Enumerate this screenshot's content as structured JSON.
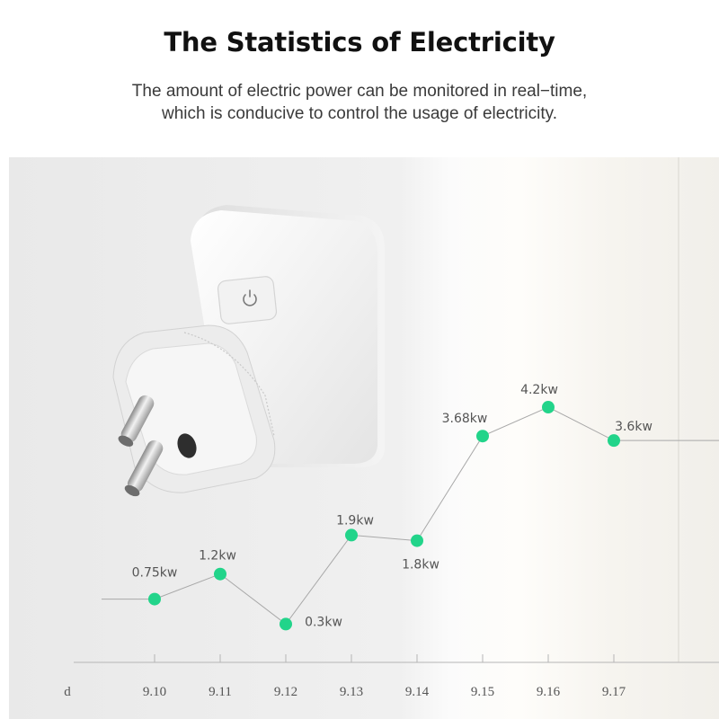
{
  "header": {
    "title": "The Statistics of Electricity",
    "subtitle_line1": "The amount of electric power can be monitored in real−time,",
    "subtitle_line2": "which is conducive to control the usage of electricity."
  },
  "colors": {
    "point": "#22d48a",
    "line": "#a8a8a8",
    "axis": "#b5b5b5",
    "label": "#555555",
    "background_panel": "#eeeeee"
  },
  "product": {
    "icon": "power-icon"
  },
  "chart_data": {
    "type": "line",
    "x_prefix": "d",
    "categories": [
      "9.10",
      "9.11",
      "9.12",
      "9.13",
      "9.14",
      "9.15",
      "9.16",
      "9.17"
    ],
    "values": [
      0.75,
      1.2,
      0.3,
      1.9,
      1.8,
      3.68,
      4.2,
      3.6
    ],
    "labels": [
      "0.75kw",
      "1.2kw",
      "0.3kw",
      "1.9kw",
      "1.8kw",
      "3.68kw",
      "4.2kw",
      "3.6kw"
    ],
    "title": "",
    "xlabel": "",
    "ylabel": ""
  }
}
